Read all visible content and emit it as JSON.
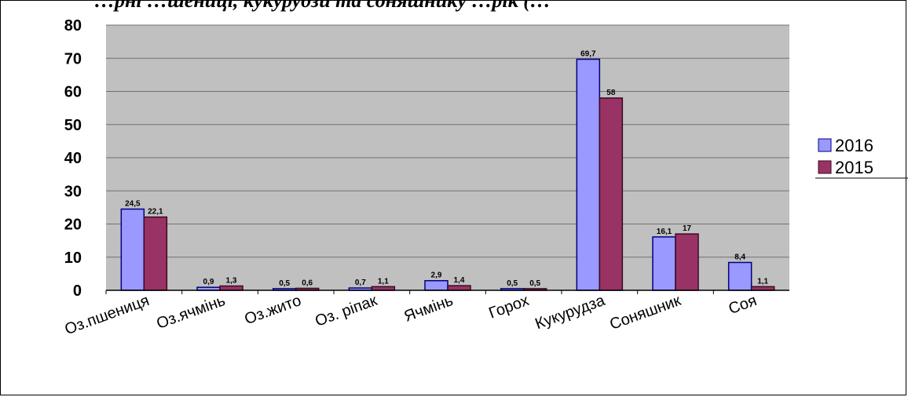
{
  "chart_data": {
    "type": "bar",
    "title": "…рні …шениці, кукурудзи та соняшнику …рік (…",
    "categories": [
      "Оз.пшениця",
      "Оз.ячмінь",
      "Оз.жито",
      "Оз. ріпак",
      "Ячмінь",
      "Горох",
      "Кукурудза",
      "Соняшник",
      "Соя"
    ],
    "series": [
      {
        "name": "2016",
        "color": "#9999ff",
        "values": [
          24.5,
          0.9,
          0.5,
          0.7,
          2.9,
          0.5,
          69.7,
          16.1,
          8.4
        ],
        "labels": [
          "24,5",
          "0,9",
          "0,5",
          "0,7",
          "2,9",
          "0,5",
          "69,7",
          "16,1",
          "8,4"
        ]
      },
      {
        "name": "2015",
        "color": "#993366",
        "values": [
          22.1,
          1.3,
          0.6,
          1.1,
          1.4,
          0.5,
          58.0,
          17.0,
          1.1
        ],
        "labels": [
          "22,1",
          "1,3",
          "0,6",
          "1,1",
          "1,4",
          "0,5",
          "58",
          "17",
          "1,1"
        ]
      }
    ],
    "ylim": [
      0,
      80
    ],
    "yticks": [
      0,
      10,
      20,
      30,
      40,
      50,
      60,
      70,
      80
    ],
    "grid": true,
    "plot_background": "#c0c0c0",
    "legend_position": "right"
  }
}
